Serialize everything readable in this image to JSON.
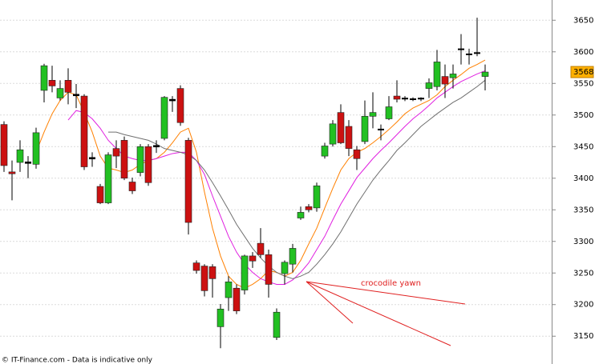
{
  "chart_data": {
    "type": "candlestick",
    "open": [
      3485,
      3410,
      3425,
      3425,
      3422,
      3539,
      3555,
      3527,
      3555,
      3532,
      3530,
      3432,
      3387,
      3361,
      3447,
      3460,
      3394,
      3409,
      3450,
      3451,
      3463,
      3524,
      3542,
      3460,
      3266,
      3261,
      3260,
      3165,
      3211,
      3226,
      3223,
      3277,
      3297,
      3279,
      3148,
      3249,
      3264,
      3337,
      3355,
      3353,
      3435,
      3454,
      3504,
      3482,
      3445,
      3458,
      3498,
      3477,
      3494,
      3530,
      3526,
      3525,
      3525,
      3542,
      3545,
      3561,
      3559,
      3604,
      3596,
      3598,
      3561
    ],
    "high": [
      3490,
      3428,
      3460,
      3435,
      3480,
      3581,
      3578,
      3555,
      3574,
      3549,
      3533,
      3441,
      3391,
      3441,
      3460,
      3466,
      3401,
      3454,
      3454,
      3460,
      3530,
      3530,
      3547,
      3464,
      3270,
      3264,
      3264,
      3201,
      3245,
      3232,
      3279,
      3283,
      3321,
      3287,
      3194,
      3270,
      3296,
      3355,
      3359,
      3393,
      3456,
      3492,
      3517,
      3492,
      3451,
      3523,
      3536,
      3485,
      3530,
      3555,
      3530,
      3528,
      3528,
      3558,
      3603,
      3580,
      3580,
      3628,
      3605,
      3654,
      3580
    ],
    "low": [
      3410,
      3365,
      3410,
      3400,
      3415,
      3520,
      3536,
      3523,
      3517,
      3511,
      3413,
      3418,
      3359,
      3359,
      3416,
      3397,
      3375,
      3403,
      3388,
      3440,
      3460,
      3505,
      3483,
      3311,
      3249,
      3213,
      3211,
      3131,
      3190,
      3185,
      3216,
      3258,
      3274,
      3211,
      3144,
      3232,
      3251,
      3334,
      3346,
      3347,
      3431,
      3450,
      3454,
      3435,
      3413,
      3454,
      3479,
      3460,
      3492,
      3520,
      3522,
      3522,
      3522,
      3527,
      3539,
      3527,
      3542,
      3580,
      3580,
      3593,
      3539
    ],
    "close": [
      3420,
      3407,
      3445,
      3423,
      3472,
      3578,
      3546,
      3542,
      3536,
      3530,
      3418,
      3430,
      3361,
      3437,
      3435,
      3400,
      3380,
      3450,
      3393,
      3449,
      3528,
      3522,
      3488,
      3330,
      3254,
      3222,
      3241,
      3193,
      3236,
      3190,
      3277,
      3269,
      3279,
      3232,
      3188,
      3267,
      3289,
      3346,
      3350,
      3388,
      3451,
      3486,
      3456,
      3447,
      3431,
      3498,
      3504,
      3476,
      3513,
      3525,
      3525,
      3525,
      3526,
      3551,
      3584,
      3549,
      3565,
      3603,
      3596,
      3597,
      3568
    ],
    "up_color": "#22c022",
    "down_color": "#cc1111",
    "series": [
      {
        "color": "#ff8000",
        "values": [
          null,
          null,
          null,
          null,
          3441,
          3473,
          3502,
          3523,
          3536,
          3532,
          3504,
          3473,
          3435,
          3416,
          3413,
          3409,
          3413,
          3422,
          3428,
          3431,
          3441,
          3456,
          3473,
          3479,
          3441,
          3378,
          3321,
          3277,
          3245,
          3232,
          3226,
          3232,
          3241,
          3254,
          3251,
          3245,
          3251,
          3270,
          3296,
          3321,
          3353,
          3384,
          3413,
          3431,
          3441,
          3447,
          3456,
          3466,
          3477,
          3489,
          3502,
          3511,
          3517,
          3523,
          3532,
          3545,
          3555,
          3564,
          3574,
          3580,
          3587
        ]
      },
      {
        "color": "#e020e0",
        "values": [
          null,
          null,
          null,
          null,
          null,
          null,
          null,
          null,
          3492,
          3507,
          3504,
          3494,
          3479,
          3460,
          3447,
          3435,
          3431,
          3428,
          3428,
          3431,
          3435,
          3439,
          3441,
          3441,
          3428,
          3406,
          3372,
          3340,
          3308,
          3283,
          3264,
          3251,
          3241,
          3236,
          3232,
          3232,
          3239,
          3251,
          3266,
          3287,
          3308,
          3334,
          3359,
          3380,
          3401,
          3416,
          3431,
          3444,
          3456,
          3469,
          3482,
          3494,
          3504,
          3515,
          3527,
          3536,
          3545,
          3553,
          3559,
          3565,
          3570
        ]
      },
      {
        "color": "#707070",
        "values": [
          null,
          null,
          null,
          null,
          null,
          null,
          null,
          null,
          null,
          null,
          null,
          null,
          null,
          3473,
          3473,
          3469,
          3466,
          3463,
          3460,
          3454,
          3447,
          3444,
          3441,
          3437,
          3428,
          3413,
          3393,
          3372,
          3350,
          3327,
          3308,
          3289,
          3274,
          3261,
          3251,
          3245,
          3241,
          3245,
          3251,
          3264,
          3279,
          3296,
          3315,
          3337,
          3359,
          3378,
          3397,
          3413,
          3428,
          3444,
          3456,
          3469,
          3482,
          3492,
          3502,
          3511,
          3520,
          3527,
          3536,
          3545,
          3555
        ]
      }
    ],
    "ylim": [
      3106,
      3682
    ],
    "yticks": [
      3150,
      3200,
      3250,
      3300,
      3350,
      3400,
      3450,
      3500,
      3550,
      3600,
      3650
    ],
    "grid": true,
    "last_price": 3568,
    "annotation": "crocodile yawn",
    "footer": "© IT-Finance.com - Data is indicative only"
  }
}
